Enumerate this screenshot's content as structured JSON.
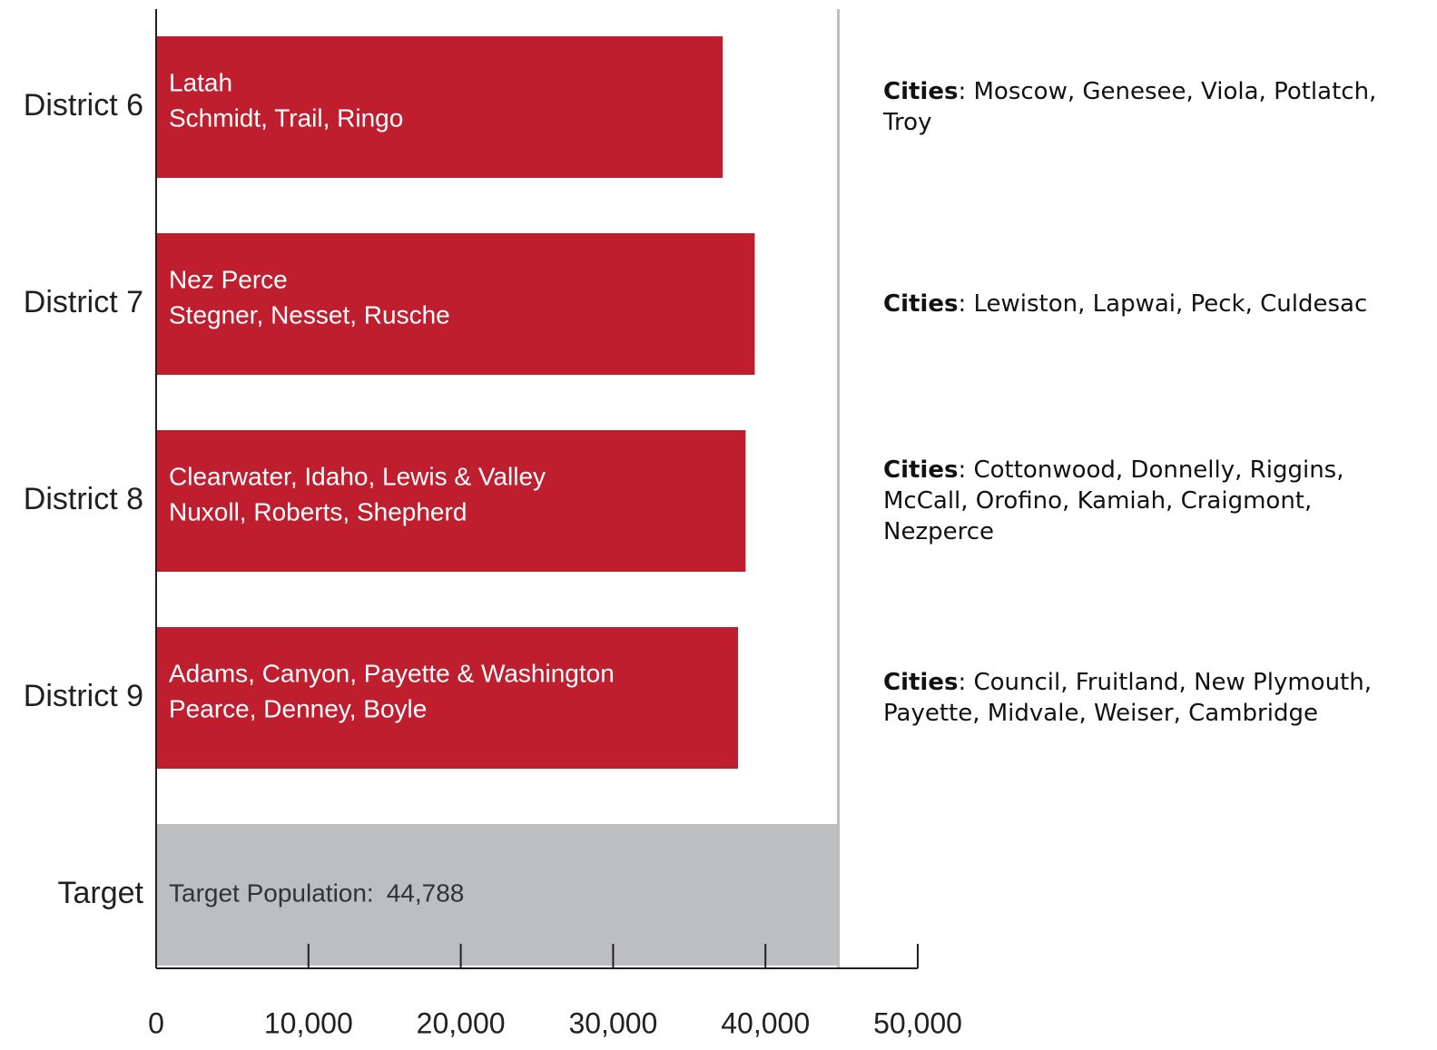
{
  "chart_data": {
    "type": "hbar",
    "categories": [
      "District 6",
      "District 7",
      "District 8",
      "District 9",
      "Target"
    ],
    "values": [
      37200,
      39300,
      38700,
      38200,
      44788
    ],
    "value_labels": [
      null,
      null,
      null,
      null,
      "44,788"
    ],
    "colors": [
      "#be1e2d",
      "#be1e2d",
      "#be1e2d",
      "#be1e2d",
      "#bcbec0"
    ],
    "bar_text": [
      [
        "Latah",
        "Schmidt, Trail, Ringo"
      ],
      [
        "Nez Perce",
        "Stegner, Nesset, Rusche"
      ],
      [
        "Clearwater, Idaho, Lewis & Valley",
        "Nuxoll, Roberts, Shepherd"
      ],
      [
        "Adams, Canyon, Payette & Washington",
        "Pearce, Denney, Boyle"
      ],
      [
        "Target Population:"
      ]
    ],
    "cities_label": "Cities",
    "cities": [
      ": Moscow, Genesee, Viola, Potlatch, Troy",
      ": Lewiston, Lapwai, Peck, Culdesac",
      ": Cottonwood, Donnelly, Riggins, McCall, Orofino, Kamiah, Craigmont, Nezperce",
      ": Council, Fruitland, New Plymouth, Payette, Midvale, Weiser, Cambridge"
    ],
    "xlim": [
      0,
      50000
    ],
    "xticks": [
      0,
      {
        "value": 10000,
        "label": "10,000"
      },
      {
        "value": 20000,
        "label": "20,000"
      },
      {
        "value": 30000,
        "label": "30,000"
      },
      {
        "value": 40000,
        "label": "40,000"
      },
      {
        "value": 50000,
        "label": "50,000"
      }
    ],
    "target_line_color": "#bcbec0"
  }
}
